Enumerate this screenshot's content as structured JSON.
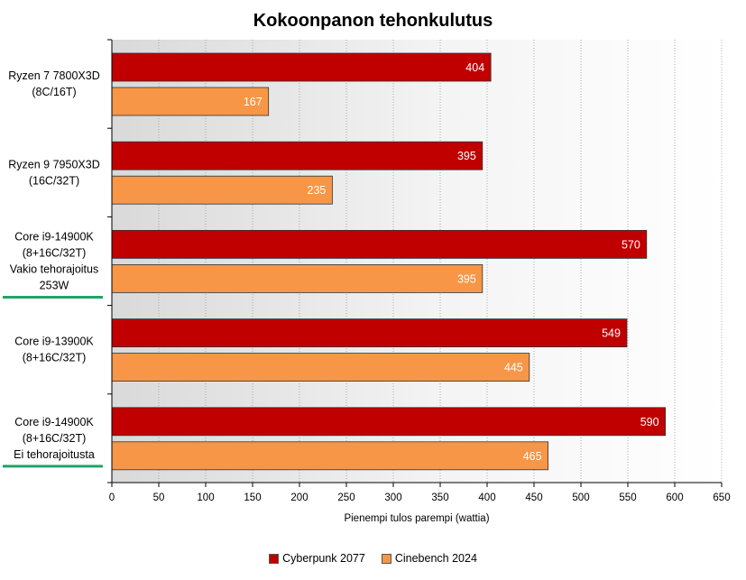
{
  "chart_data": {
    "type": "bar",
    "orientation": "horizontal",
    "title": "Kokoonpanon tehonkulutus",
    "xlabel": "Pienempi tulos parempi (wattia)",
    "ylabel": "",
    "xlim": [
      0,
      650
    ],
    "x_ticks": [
      0,
      50,
      100,
      150,
      200,
      250,
      300,
      350,
      400,
      450,
      500,
      550,
      600,
      650
    ],
    "grid": "vertical dotted",
    "legend_position": "bottom",
    "categories": [
      {
        "lines": [
          "Ryzen 7 7800X3D",
          "(8C/16T)"
        ],
        "underline": false
      },
      {
        "lines": [
          "Ryzen 9 7950X3D",
          "(16C/32T)"
        ],
        "underline": false
      },
      {
        "lines": [
          "Core i9-14900K",
          "(8+16C/32T)",
          "Vakio tehorajoitus",
          "253W"
        ],
        "underline": true
      },
      {
        "lines": [
          "Core i9-13900K",
          "(8+16C/32T)"
        ],
        "underline": false
      },
      {
        "lines": [
          "Core i9-14900K",
          "(8+16C/32T)",
          "Ei tehorajoitusta"
        ],
        "underline": true
      }
    ],
    "series": [
      {
        "name": "Cyberpunk 2077",
        "color": "#c00000",
        "values": [
          404,
          395,
          570,
          549,
          590
        ]
      },
      {
        "name": "Cinebench 2024",
        "color": "#f79646",
        "values": [
          167,
          235,
          395,
          445,
          465
        ]
      }
    ],
    "underline_color": "#22a36a"
  }
}
